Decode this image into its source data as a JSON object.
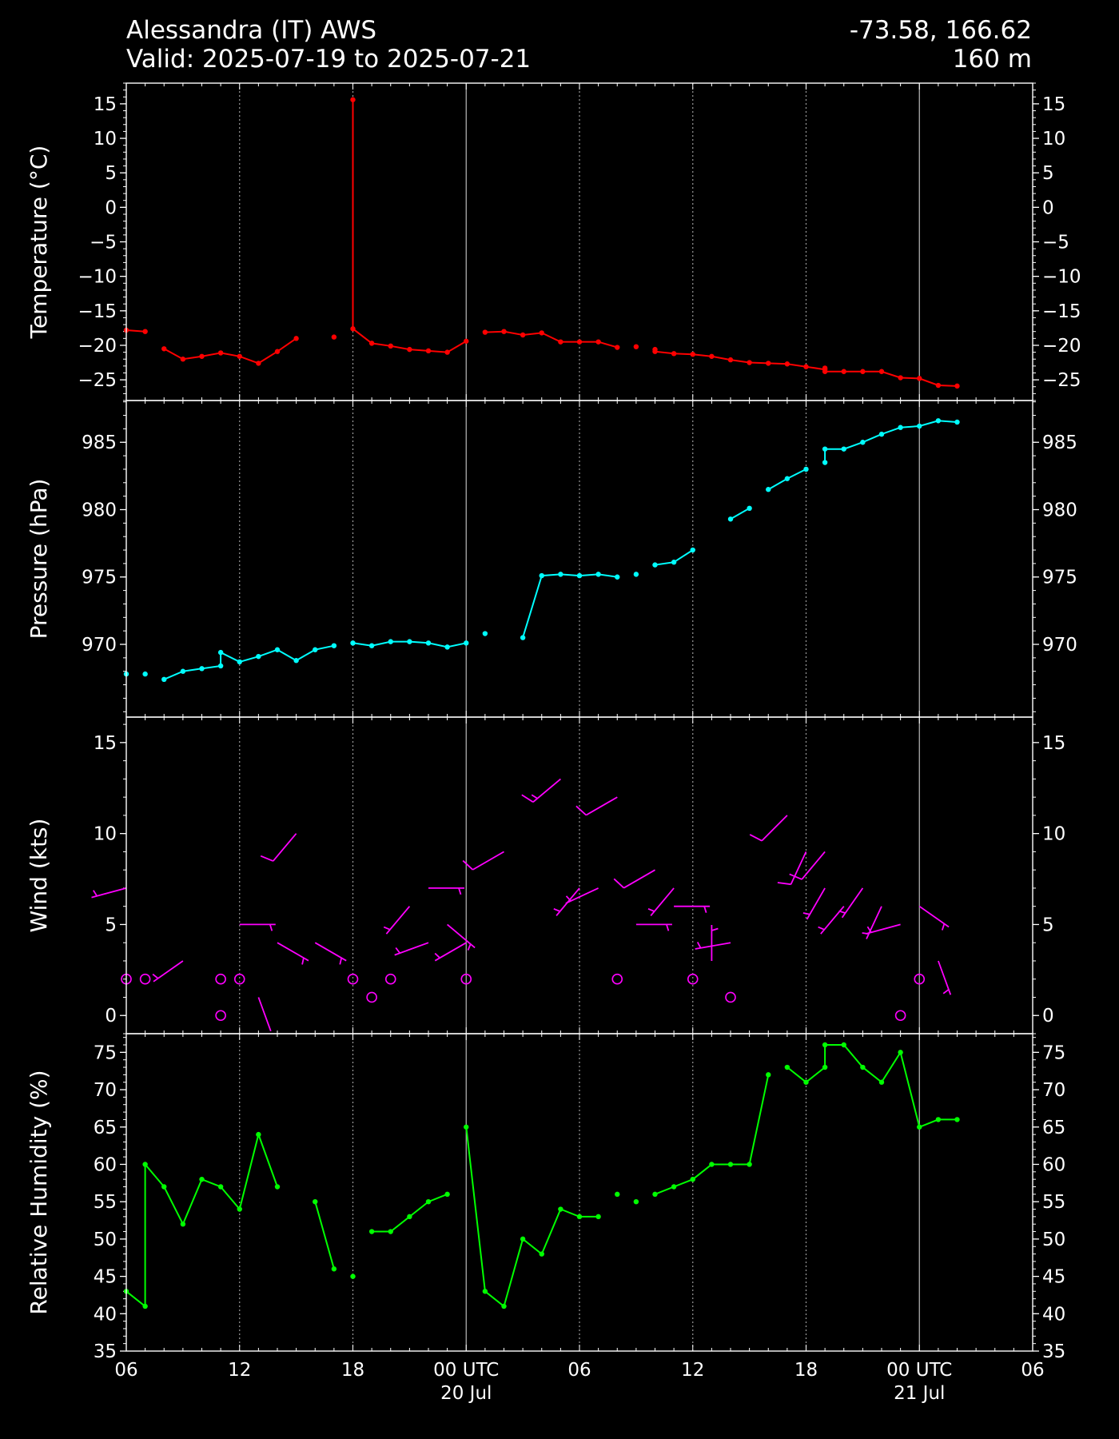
{
  "header": {
    "station": "Alessandra (IT) AWS",
    "valid": "Valid: 2025-07-19 to 2025-07-21",
    "coords": "-73.58, 166.62",
    "elevation": "160 m"
  },
  "colors": {
    "background": "#000000",
    "axes": "#ffffff",
    "temperature": "#ff0000",
    "pressure": "#00ffff",
    "wind": "#ff00ff",
    "humidity": "#00ff00",
    "grid_day": "#bbbbbb",
    "grid_6h": "#999999"
  },
  "chart_data": {
    "type": "line",
    "x_axis": {
      "unit": "hours since 2025-07-19 00 UTC",
      "range": [
        6,
        54
      ],
      "ticks": [
        {
          "x": 6,
          "label": "06",
          "label2": ""
        },
        {
          "x": 12,
          "label": "12",
          "label2": ""
        },
        {
          "x": 18,
          "label": "18",
          "label2": ""
        },
        {
          "x": 24,
          "label": "00 UTC",
          "label2": "20 Jul"
        },
        {
          "x": 30,
          "label": "06",
          "label2": ""
        },
        {
          "x": 36,
          "label": "12",
          "label2": ""
        },
        {
          "x": 42,
          "label": "18",
          "label2": ""
        },
        {
          "x": 48,
          "label": "00 UTC",
          "label2": "21 Jul"
        },
        {
          "x": 54,
          "label": "06",
          "label2": ""
        }
      ],
      "day_lines": [
        24,
        48
      ],
      "six_hour_lines": [
        12,
        18,
        30,
        36,
        42
      ]
    },
    "panels": [
      {
        "id": "temperature",
        "ylabel": "Temperature ($^\\circ$C)",
        "ylabel_text": "Temperature (°C)",
        "ylim": [
          -28,
          18
        ],
        "yticks": [
          15,
          10,
          5,
          0,
          -5,
          -10,
          -15,
          -20,
          -25
        ],
        "ytick_labels": [
          "15",
          "10",
          "5",
          "0",
          "−5",
          "−10",
          "−15",
          "−20",
          "−25"
        ],
        "color": "#ff0000",
        "segments": [
          [
            [
              6,
              -17.8
            ],
            [
              7,
              -18.0
            ]
          ],
          [
            [
              8,
              -20.5
            ],
            [
              9,
              -22.0
            ],
            [
              10,
              -21.6
            ],
            [
              11,
              -21.1
            ],
            [
              12,
              -21.6
            ],
            [
              13,
              -22.6
            ],
            [
              14,
              -20.9
            ],
            [
              15,
              -19.0
            ]
          ],
          [
            [
              17,
              -18.8
            ]
          ],
          [
            [
              18,
              15.6
            ],
            [
              18,
              -17.6
            ],
            [
              19,
              -19.7
            ],
            [
              20,
              -20.1
            ],
            [
              21,
              -20.6
            ],
            [
              22,
              -20.8
            ],
            [
              23,
              -21.0
            ],
            [
              24,
              -19.4
            ]
          ],
          [
            [
              25,
              -18.1
            ],
            [
              26,
              -18.0
            ],
            [
              27,
              -18.5
            ],
            [
              28,
              -18.2
            ],
            [
              29,
              -19.5
            ],
            [
              30,
              -19.5
            ],
            [
              31,
              -19.5
            ],
            [
              32,
              -20.3
            ]
          ],
          [
            [
              33,
              -20.2
            ]
          ],
          [
            [
              34,
              -20.6
            ],
            [
              34,
              -20.9
            ],
            [
              35,
              -21.2
            ],
            [
              36,
              -21.3
            ],
            [
              37,
              -21.6
            ],
            [
              38,
              -22.1
            ],
            [
              39,
              -22.5
            ],
            [
              40,
              -22.6
            ],
            [
              41,
              -22.7
            ],
            [
              42,
              -23.1
            ],
            [
              43,
              -23.5
            ]
          ],
          [
            [
              43,
              -23.3
            ],
            [
              43,
              -23.8
            ],
            [
              44,
              -23.8
            ],
            [
              45,
              -23.8
            ],
            [
              46,
              -23.8
            ],
            [
              47,
              -24.7
            ],
            [
              48,
              -24.8
            ],
            [
              49,
              -25.8
            ],
            [
              50,
              -25.9
            ]
          ]
        ]
      },
      {
        "id": "pressure",
        "ylabel": "Pressure (hPa)",
        "ylabel_text": "Pressure (hPa)",
        "ylim": [
          964.6,
          988.1
        ],
        "yticks": [
          970,
          975,
          980,
          985
        ],
        "ytick_labels": [
          "970",
          "975",
          "980",
          "985"
        ],
        "color": "#00ffff",
        "segments": [
          [
            [
              6,
              967.8
            ]
          ],
          [
            [
              7,
              967.8
            ]
          ],
          [
            [
              8,
              967.4
            ],
            [
              9,
              968.0
            ],
            [
              10,
              968.2
            ],
            [
              11,
              968.4
            ],
            [
              11,
              969.4
            ],
            [
              12,
              968.7
            ],
            [
              13,
              969.1
            ],
            [
              14,
              969.6
            ],
            [
              15,
              968.8
            ],
            [
              16,
              969.6
            ],
            [
              17,
              969.9
            ]
          ],
          [
            [
              18,
              970.1
            ],
            [
              19,
              969.9
            ],
            [
              20,
              970.2
            ],
            [
              21,
              970.2
            ],
            [
              22,
              970.1
            ],
            [
              23,
              969.8
            ],
            [
              24,
              970.1
            ]
          ],
          [
            [
              25,
              970.8
            ]
          ],
          [
            [
              27,
              970.5
            ],
            [
              28,
              975.1
            ],
            [
              29,
              975.2
            ],
            [
              30,
              975.1
            ],
            [
              31,
              975.2
            ],
            [
              32,
              975.0
            ]
          ],
          [
            [
              33,
              975.2
            ]
          ],
          [
            [
              34,
              975.9
            ],
            [
              35,
              976.1
            ],
            [
              36,
              977.0
            ]
          ],
          [
            [
              38,
              979.3
            ],
            [
              39,
              980.1
            ]
          ],
          [
            [
              40,
              981.5
            ],
            [
              41,
              982.3
            ],
            [
              42,
              983.0
            ]
          ],
          [
            [
              43,
              983.5
            ],
            [
              43,
              984.5
            ],
            [
              44,
              984.5
            ],
            [
              45,
              985.0
            ],
            [
              46,
              985.6
            ],
            [
              47,
              986.1
            ],
            [
              48,
              986.2
            ],
            [
              49,
              986.6
            ],
            [
              50,
              986.5
            ]
          ]
        ]
      },
      {
        "id": "wind",
        "ylabel": "Wind (kts)",
        "ylabel_text": "Wind (kts)",
        "ylim": [
          -1.0,
          16.4
        ],
        "yticks": [
          15,
          10,
          5,
          0
        ],
        "ytick_labels": [
          "15",
          "10",
          "5",
          "0"
        ],
        "color": "#ff00ff",
        "calm": [
          [
            6,
            2
          ],
          [
            7,
            2
          ],
          [
            11,
            2
          ],
          [
            11,
            0
          ],
          [
            12,
            2
          ],
          [
            18,
            2
          ],
          [
            19,
            1
          ],
          [
            20,
            2
          ],
          [
            24,
            2
          ],
          [
            32,
            2
          ],
          [
            36,
            2
          ],
          [
            38,
            1
          ],
          [
            47,
            0
          ],
          [
            48,
            2
          ]
        ],
        "barbs": [
          {
            "x": 6,
            "speed": 7,
            "dir": 255
          },
          {
            "x": 9,
            "speed": 3,
            "dir": 235
          },
          {
            "x": 15,
            "speed": 10,
            "dir": 220
          },
          {
            "x": 16,
            "speed": 4,
            "dir": 120
          },
          {
            "x": 13,
            "speed": 1,
            "dir": 160
          },
          {
            "x": 14,
            "speed": 4,
            "dir": 120
          },
          {
            "x": 12,
            "speed": 5,
            "dir": 90
          },
          {
            "x": 21,
            "speed": 6,
            "dir": 220
          },
          {
            "x": 22,
            "speed": 7,
            "dir": 90
          },
          {
            "x": 22,
            "speed": 4,
            "dir": 250
          },
          {
            "x": 23,
            "speed": 5,
            "dir": 130
          },
          {
            "x": 24,
            "speed": 4,
            "dir": 240
          },
          {
            "x": 26,
            "speed": 9,
            "dir": 240
          },
          {
            "x": 29,
            "speed": 13,
            "dir": 230
          },
          {
            "x": 30,
            "speed": 7,
            "dir": 220
          },
          {
            "x": 31,
            "speed": 7,
            "dir": 245
          },
          {
            "x": 32,
            "speed": 12,
            "dir": 240
          },
          {
            "x": 33,
            "speed": 5,
            "dir": 90
          },
          {
            "x": 34,
            "speed": 8,
            "dir": 240
          },
          {
            "x": 35,
            "speed": 7,
            "dir": 220
          },
          {
            "x": 35,
            "speed": 6,
            "dir": 90
          },
          {
            "x": 37,
            "speed": 3,
            "dir": 0
          },
          {
            "x": 38,
            "speed": 4,
            "dir": 260
          },
          {
            "x": 41,
            "speed": 11,
            "dir": 225
          },
          {
            "x": 42,
            "speed": 9,
            "dir": 205
          },
          {
            "x": 43,
            "speed": 7,
            "dir": 210
          },
          {
            "x": 43,
            "speed": 9,
            "dir": 220
          },
          {
            "x": 44,
            "speed": 6,
            "dir": 220
          },
          {
            "x": 45,
            "speed": 7,
            "dir": 215
          },
          {
            "x": 46,
            "speed": 6,
            "dir": 205
          },
          {
            "x": 47,
            "speed": 5,
            "dir": 255
          },
          {
            "x": 48,
            "speed": 6,
            "dir": 125
          },
          {
            "x": 49,
            "speed": 3,
            "dir": 160
          }
        ]
      },
      {
        "id": "humidity",
        "ylabel": "Relative Humidity (%)",
        "ylabel_text": "Relative Humidity (%)",
        "ylim": [
          35,
          77.5
        ],
        "yticks": [
          75,
          70,
          65,
          60,
          55,
          50,
          45,
          40,
          35
        ],
        "ytick_labels": [
          "75",
          "70",
          "65",
          "60",
          "55",
          "50",
          "45",
          "40",
          "35"
        ],
        "color": "#00ff00",
        "segments": [
          [
            [
              6,
              43
            ],
            [
              7,
              41
            ],
            [
              7,
              60
            ],
            [
              8,
              57
            ],
            [
              9,
              52
            ],
            [
              10,
              58
            ],
            [
              11,
              57
            ],
            [
              12,
              54
            ],
            [
              13,
              64
            ],
            [
              14,
              57
            ]
          ],
          [
            [
              16,
              55
            ],
            [
              17,
              46
            ]
          ],
          [
            [
              18,
              45
            ]
          ],
          [
            [
              19,
              51
            ],
            [
              20,
              51
            ],
            [
              21,
              53
            ],
            [
              22,
              55
            ],
            [
              23,
              56
            ]
          ],
          [
            [
              24,
              65
            ],
            [
              25,
              43
            ],
            [
              26,
              41
            ],
            [
              27,
              50
            ],
            [
              28,
              48
            ],
            [
              29,
              54
            ],
            [
              30,
              53
            ],
            [
              31,
              53
            ]
          ],
          [
            [
              32,
              56
            ]
          ],
          [
            [
              33,
              55
            ]
          ],
          [
            [
              34,
              56
            ],
            [
              35,
              57
            ],
            [
              36,
              58
            ],
            [
              37,
              60
            ],
            [
              38,
              60
            ],
            [
              39,
              60
            ],
            [
              40,
              72
            ]
          ],
          [
            [
              41,
              73
            ],
            [
              42,
              71
            ],
            [
              43,
              73
            ],
            [
              43,
              76
            ],
            [
              44,
              76
            ],
            [
              45,
              73
            ],
            [
              46,
              71
            ],
            [
              47,
              75
            ],
            [
              48,
              65
            ],
            [
              49,
              66
            ],
            [
              50,
              66
            ]
          ]
        ]
      }
    ]
  }
}
